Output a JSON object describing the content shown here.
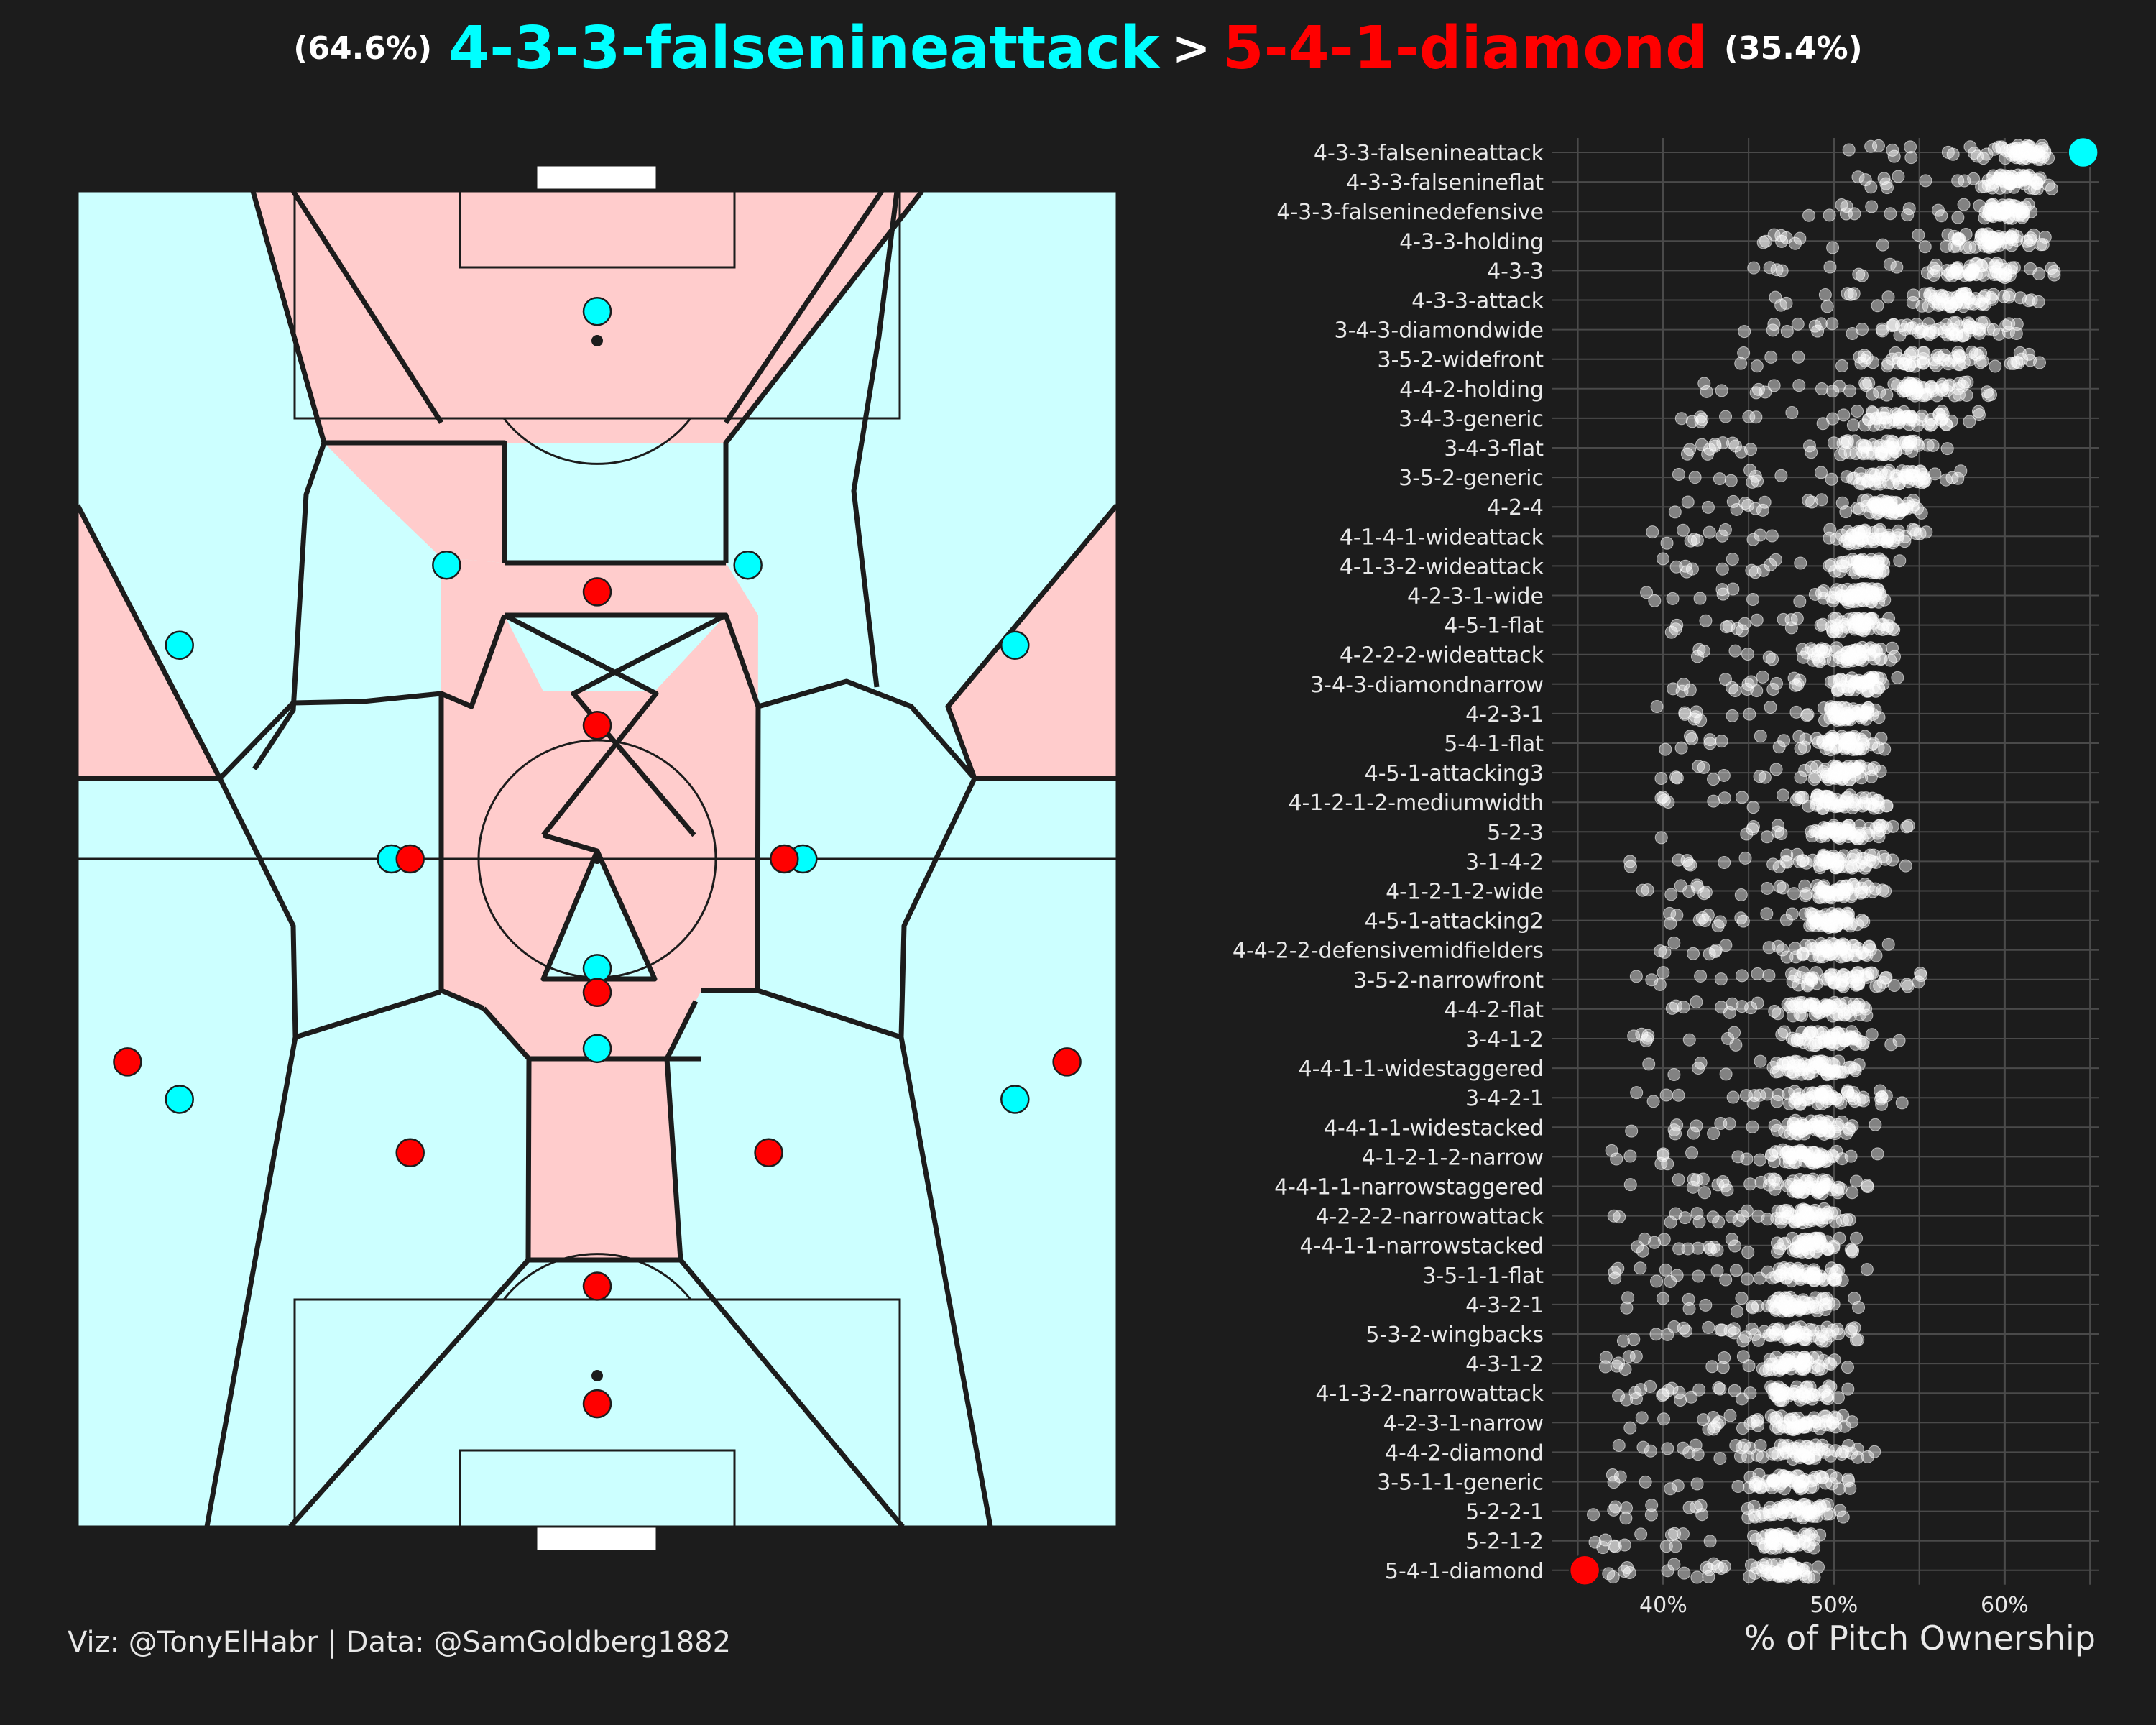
{
  "title": {
    "left_pct": "(64.6%)",
    "left_formation": "4-3-3-falsenineattack",
    "separator": ">",
    "right_formation": "5-4-1-diamond",
    "right_pct": "(35.4%)"
  },
  "colors": {
    "left_team": "#00ffff",
    "right_team": "#ff0000",
    "left_region": "#ccffff",
    "right_region": "#ffcccc",
    "background": "#1c1c1c"
  },
  "caption": "Viz: @TonyElHabr | Data: @SamGoldberg1882",
  "chart_data": {
    "type": "scatter",
    "xlabel": "% of Pitch Ownership",
    "ylabel": "",
    "xlim": [
      0.335,
      0.655
    ],
    "xticks": [
      0.4,
      0.5,
      0.6
    ],
    "xtick_labels": [
      "40%",
      "50%",
      "60%"
    ],
    "grid": true,
    "categories": [
      "4-3-3-falsenineattack",
      "4-3-3-falsenineflat",
      "4-3-3-falseninedefensive",
      "4-3-3-holding",
      "4-3-3",
      "4-3-3-attack",
      "3-4-3-diamondwide",
      "3-5-2-widefront",
      "4-4-2-holding",
      "3-4-3-generic",
      "3-4-3-flat",
      "3-5-2-generic",
      "4-2-4",
      "4-1-4-1-wideattack",
      "4-1-3-2-wideattack",
      "4-2-3-1-wide",
      "4-5-1-flat",
      "4-2-2-2-wideattack",
      "3-4-3-diamondnarrow",
      "4-2-3-1",
      "5-4-1-flat",
      "4-5-1-attacking3",
      "4-1-2-1-2-mediumwidth",
      "5-2-3",
      "3-1-4-2",
      "4-1-2-1-2-wide",
      "4-5-1-attacking2",
      "4-4-2-2-defensivemidfielders",
      "3-5-2-narrowfront",
      "4-4-2-flat",
      "3-4-1-2",
      "4-4-1-1-widestaggered",
      "3-4-2-1",
      "4-4-1-1-widestacked",
      "4-1-2-1-2-narrow",
      "4-4-1-1-narrowstaggered",
      "4-2-2-2-narrowattack",
      "4-4-1-1-narrowstacked",
      "3-5-1-1-flat",
      "4-3-2-1",
      "5-3-2-wingbacks",
      "4-3-1-2",
      "4-1-3-2-narrowattack",
      "4-2-3-1-narrow",
      "4-4-2-diamond",
      "3-5-1-1-generic",
      "5-2-2-1",
      "5-2-1-2",
      "5-4-1-diamond"
    ],
    "median": [
      0.61,
      0.605,
      0.6,
      0.59,
      0.585,
      0.575,
      0.565,
      0.56,
      0.545,
      0.54,
      0.53,
      0.535,
      0.53,
      0.525,
      0.52,
      0.515,
      0.512,
      0.512,
      0.515,
      0.51,
      0.508,
      0.505,
      0.505,
      0.51,
      0.505,
      0.5,
      0.495,
      0.5,
      0.505,
      0.495,
      0.495,
      0.49,
      0.49,
      0.488,
      0.488,
      0.485,
      0.485,
      0.485,
      0.485,
      0.48,
      0.48,
      0.478,
      0.478,
      0.48,
      0.478,
      0.475,
      0.475,
      0.472,
      0.47
    ],
    "min": [
      0.5,
      0.49,
      0.48,
      0.455,
      0.45,
      0.445,
      0.445,
      0.43,
      0.41,
      0.405,
      0.405,
      0.405,
      0.395,
      0.39,
      0.395,
      0.385,
      0.4,
      0.39,
      0.405,
      0.38,
      0.4,
      0.395,
      0.395,
      0.38,
      0.38,
      0.385,
      0.4,
      0.38,
      0.38,
      0.39,
      0.38,
      0.385,
      0.375,
      0.38,
      0.36,
      0.375,
      0.37,
      0.37,
      0.37,
      0.36,
      0.36,
      0.36,
      0.355,
      0.355,
      0.365,
      0.36,
      0.355,
      0.355,
      0.365
    ],
    "max": [
      0.64,
      0.635,
      0.62,
      0.63,
      0.63,
      0.625,
      0.625,
      0.63,
      0.6,
      0.59,
      0.575,
      0.575,
      0.555,
      0.555,
      0.54,
      0.54,
      0.54,
      0.55,
      0.54,
      0.53,
      0.535,
      0.53,
      0.54,
      0.545,
      0.555,
      0.53,
      0.52,
      0.535,
      0.555,
      0.53,
      0.54,
      0.525,
      0.54,
      0.525,
      0.53,
      0.52,
      0.515,
      0.515,
      0.52,
      0.515,
      0.53,
      0.51,
      0.52,
      0.525,
      0.525,
      0.52,
      0.51,
      0.5,
      0.5
    ],
    "highlight": [
      {
        "category": "4-3-3-falsenineattack",
        "value": 0.646,
        "color": "#00ffff"
      },
      {
        "category": "5-4-1-diamond",
        "value": 0.354,
        "color": "#ff0000"
      }
    ]
  },
  "pitch": {
    "left_team_players": [
      [
        0.5,
        0.09
      ],
      [
        0.098,
        0.34
      ],
      [
        0.355,
        0.28
      ],
      [
        0.645,
        0.28
      ],
      [
        0.902,
        0.34
      ],
      [
        0.302,
        0.5
      ],
      [
        0.698,
        0.5
      ],
      [
        0.5,
        0.582
      ],
      [
        0.098,
        0.68
      ],
      [
        0.902,
        0.68
      ],
      [
        0.5,
        0.642
      ]
    ],
    "right_team_players": [
      [
        0.5,
        0.908
      ],
      [
        0.048,
        0.652
      ],
      [
        0.952,
        0.652
      ],
      [
        0.32,
        0.5
      ],
      [
        0.68,
        0.5
      ],
      [
        0.5,
        0.6
      ],
      [
        0.5,
        0.4
      ],
      [
        0.5,
        0.3
      ],
      [
        0.5,
        0.82
      ],
      [
        0.32,
        0.72
      ],
      [
        0.665,
        0.72
      ]
    ]
  }
}
